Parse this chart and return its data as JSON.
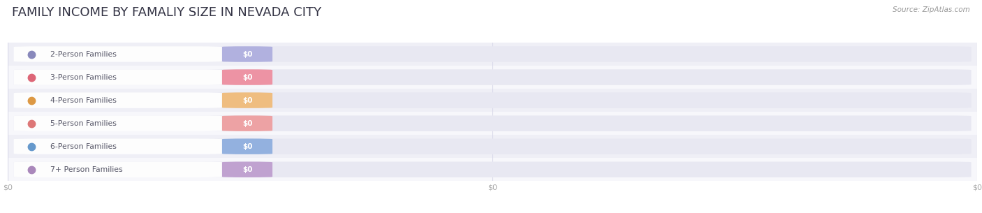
{
  "title": "FAMILY INCOME BY FAMALIY SIZE IN NEVADA CITY",
  "source_text": "Source: ZipAtlas.com",
  "categories": [
    "2-Person Families",
    "3-Person Families",
    "4-Person Families",
    "5-Person Families",
    "6-Person Families",
    "7+ Person Families"
  ],
  "values": [
    0,
    0,
    0,
    0,
    0,
    0
  ],
  "bar_colors": [
    "#aaaadd",
    "#ee8899",
    "#f0b870",
    "#ee9999",
    "#88aadd",
    "#bb99cc"
  ],
  "dot_colors": [
    "#8888bb",
    "#dd6677",
    "#dd9944",
    "#dd7777",
    "#6699cc",
    "#aa88bb"
  ],
  "row_bg_even": "#f7f7fb",
  "row_bg_odd": "#efeff6",
  "track_color": "#e8e8f2",
  "label_pill_color": "#ffffff",
  "background_color": "#ffffff",
  "title_fontsize": 13,
  "label_text_color": "#555566",
  "value_text_color": "#ffffff",
  "source_color": "#999999",
  "grid_color": "#d8d8e8",
  "xtick_labels": [
    "$0",
    "$0",
    "$0"
  ]
}
